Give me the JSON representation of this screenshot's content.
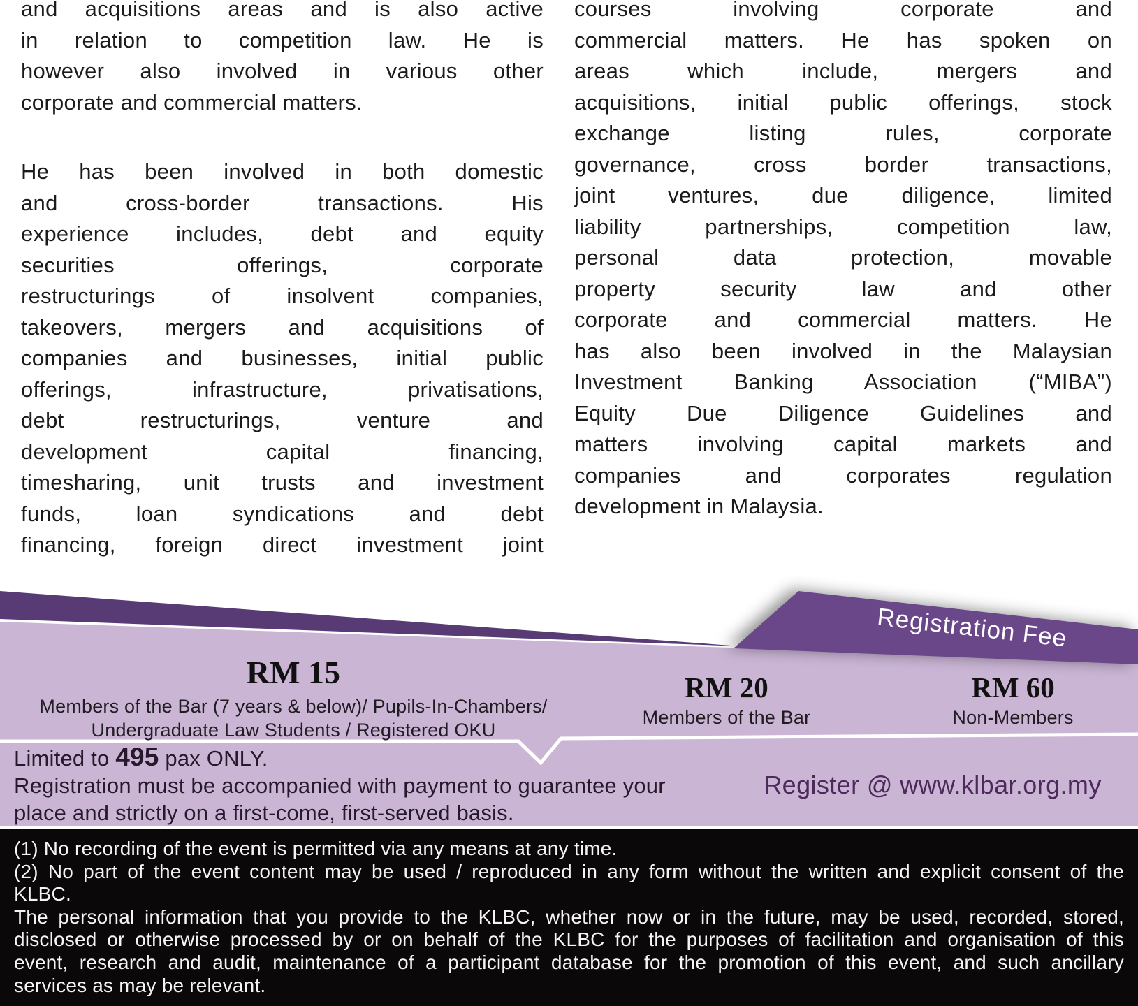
{
  "body": {
    "left_column": {
      "para1_lines": [
        "and acquisitions areas and is also active",
        "in relation to competition law. He is",
        "however also involved in various other",
        "corporate and commercial matters."
      ],
      "para2_lines": [
        "He has been involved in both domestic",
        "and cross-border transactions. His",
        "experience includes, debt and equity",
        "securities offerings, corporate",
        "restructurings of insolvent companies,",
        "takeovers, mergers and acquisitions of",
        "companies and businesses, initial public",
        "offerings, infrastructure, privatisations,",
        "debt restructurings, venture and",
        "development capital financing,",
        "timesharing, unit trusts and investment",
        "funds, loan syndications and debt",
        "financing, foreign direct investment joint"
      ]
    },
    "right_column": {
      "para_lines": [
        "courses involving corporate and",
        "commercial matters. He has spoken on",
        "areas which include, mergers and",
        "acquisitions, initial public offerings, stock",
        "exchange listing rules, corporate",
        "governance, cross border transactions,",
        "joint ventures, due diligence, limited",
        "liability partnerships, competition law,",
        "personal data protection, movable",
        "property security law and other",
        "corporate and commercial matters. He",
        "has also been involved in the Malaysian",
        "Investment Banking Association (“MIBA”)",
        "Equity Due Diligence Guidelines and",
        "matters involving capital markets and",
        "companies and corporates regulation",
        "development in Malaysia."
      ]
    }
  },
  "registration": {
    "ribbon_label": "Registration Fee",
    "tiers": [
      {
        "price": "RM 15",
        "desc_lines": [
          "Members of the Bar (7 years & below)/ Pupils-In-Chambers/",
          "Undergraduate Law Students / Registered OKU"
        ]
      },
      {
        "price": "RM 20",
        "desc_lines": [
          "Members of the Bar"
        ]
      },
      {
        "price": "RM 60",
        "desc_lines": [
          "Non-Members"
        ]
      }
    ],
    "limit_prefix": "Limited to ",
    "limit_number": "495",
    "limit_suffix": " pax ONLY.",
    "payment_note_lines": [
      "Registration must  be accompanied with payment to guarantee your",
      "place and strictly on a first-come, first-served basis."
    ],
    "register_link": "Register @ www.klbar.org.my"
  },
  "footer": {
    "para1_lines": [
      "(1) No recording of the event is permitted via any means at any time."
    ],
    "para2_lines": [
      "(2) No part of the event content may be used / reproduced in any form without the written and explicit consent of the",
      "KLBC."
    ],
    "para3_lines": [
      "The personal information that you provide to the KLBC, whether now or in the future, may be used, recorded, stored,",
      "disclosed or otherwise processed by or on behalf of the KLBC for the purposes of facilitation and organisation of this",
      "event, research and audit, maintenance of a participant database for the promotion of this event, and such ancillary",
      "services as may be relevant."
    ]
  },
  "colors": {
    "lavender_panel": "#cab5d5",
    "dark_wedge": "#583a75",
    "ribbon": "#694789",
    "footer_background": "#0b080a",
    "link_text": "#4e2a5c",
    "body_text": "#1b1b1b"
  }
}
